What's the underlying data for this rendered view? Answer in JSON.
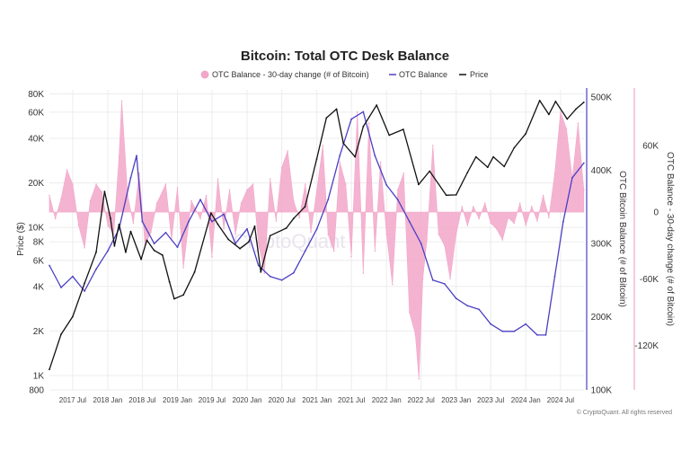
{
  "chart_data": {
    "type": "line",
    "title": "Bitcoin: Total OTC Desk Balance",
    "legend": {
      "position": "top-center",
      "entries": [
        {
          "name": "OTC Balance - 30-day change (# of Bitcoin)",
          "symbol": "circle",
          "color": "#f2a7c9"
        },
        {
          "name": "OTC Balance",
          "symbol": "line",
          "color": "#4b3fc4"
        },
        {
          "name": "Price",
          "symbol": "line",
          "color": "#111111"
        }
      ]
    },
    "axes": {
      "price": {
        "label": "Price ($)",
        "scale": "log",
        "range": [
          800,
          85000
        ],
        "ticks": [
          "80K",
          "60K",
          "40K",
          "20K",
          "10K",
          "8K",
          "6K",
          "4K",
          "2K",
          "1K",
          "800"
        ],
        "tick_values": [
          80000,
          60000,
          40000,
          20000,
          10000,
          8000,
          6000,
          4000,
          2000,
          1000,
          800
        ]
      },
      "otc_balance": {
        "label": "OTC Bitcoin Balance (# of Bitcoin)",
        "range": [
          100000,
          510000
        ],
        "ticks": [
          "500K",
          "400K",
          "300K",
          "200K",
          "100K"
        ],
        "tick_values": [
          500000,
          400000,
          300000,
          200000,
          100000
        ]
      },
      "otc_change": {
        "label": "OTC Balance - 30-day change (# of Bitcoin)",
        "range": [
          -160000,
          110000
        ],
        "ticks": [
          "60K",
          "0",
          "-60K",
          "-120K"
        ],
        "tick_values": [
          60000,
          0,
          -60000,
          -120000
        ]
      },
      "x": {
        "range": [
          "2017-03-01",
          "2024-11-01"
        ],
        "ticks": [
          "2017 Jul",
          "2018 Jan",
          "2018 Jul",
          "2019 Jan",
          "2019 Jul",
          "2020 Jan",
          "2020 Jul",
          "2021 Jan",
          "2021 Jul",
          "2022 Jan",
          "2022 Jul",
          "2023 Jan",
          "2023 Jul",
          "2024 Jan",
          "2024 Jul"
        ],
        "tick_dates": [
          "2017-07-01",
          "2018-01-01",
          "2018-07-01",
          "2019-01-01",
          "2019-07-01",
          "2020-01-01",
          "2020-07-01",
          "2021-01-01",
          "2021-07-01",
          "2022-01-01",
          "2022-07-01",
          "2023-01-01",
          "2023-07-01",
          "2024-01-01",
          "2024-07-01"
        ]
      }
    },
    "grid": true,
    "series": [
      {
        "name": "Price",
        "axis": "price",
        "color": "#111111",
        "points": [
          [
            "2017-03-01",
            1100
          ],
          [
            "2017-05-01",
            1900
          ],
          [
            "2017-07-01",
            2500
          ],
          [
            "2017-09-01",
            4200
          ],
          [
            "2017-11-01",
            6800
          ],
          [
            "2017-12-15",
            17500
          ],
          [
            "2018-01-15",
            11500
          ],
          [
            "2018-02-05",
            7500
          ],
          [
            "2018-03-01",
            10500
          ],
          [
            "2018-04-05",
            6800
          ],
          [
            "2018-05-01",
            9400
          ],
          [
            "2018-06-25",
            6100
          ],
          [
            "2018-07-25",
            8200
          ],
          [
            "2018-09-01",
            7000
          ],
          [
            "2018-10-15",
            6500
          ],
          [
            "2018-11-20",
            4300
          ],
          [
            "2018-12-15",
            3300
          ],
          [
            "2019-02-01",
            3500
          ],
          [
            "2019-04-01",
            5000
          ],
          [
            "2019-06-26",
            12500
          ],
          [
            "2019-08-01",
            10500
          ],
          [
            "2019-09-25",
            8300
          ],
          [
            "2019-11-25",
            7200
          ],
          [
            "2020-01-10",
            8000
          ],
          [
            "2020-02-10",
            10200
          ],
          [
            "2020-03-13",
            5000
          ],
          [
            "2020-05-01",
            8800
          ],
          [
            "2020-07-25",
            9900
          ],
          [
            "2020-09-01",
            11500
          ],
          [
            "2020-10-31",
            13800
          ],
          [
            "2020-12-31",
            29000
          ],
          [
            "2021-02-20",
            55000
          ],
          [
            "2021-04-14",
            63000
          ],
          [
            "2021-05-20",
            37000
          ],
          [
            "2021-07-20",
            30000
          ],
          [
            "2021-09-01",
            48000
          ],
          [
            "2021-11-10",
            67000
          ],
          [
            "2022-01-15",
            42000
          ],
          [
            "2022-03-30",
            46000
          ],
          [
            "2022-06-18",
            19500
          ],
          [
            "2022-08-15",
            24000
          ],
          [
            "2022-11-10",
            16500
          ],
          [
            "2023-01-01",
            16600
          ],
          [
            "2023-03-01",
            23500
          ],
          [
            "2023-04-15",
            30000
          ],
          [
            "2023-06-15",
            25500
          ],
          [
            "2023-07-15",
            30000
          ],
          [
            "2023-09-10",
            25800
          ],
          [
            "2023-11-01",
            34500
          ],
          [
            "2024-01-01",
            43000
          ],
          [
            "2024-03-14",
            72000
          ],
          [
            "2024-05-01",
            58000
          ],
          [
            "2024-06-05",
            71000
          ],
          [
            "2024-08-05",
            54000
          ],
          [
            "2024-09-20",
            63000
          ],
          [
            "2024-10-31",
            70000
          ]
        ]
      },
      {
        "name": "OTC Balance",
        "axis": "otc_balance",
        "color": "#4b3fc4",
        "points": [
          [
            "2017-03-01",
            270000
          ],
          [
            "2017-05-01",
            240000
          ],
          [
            "2017-07-01",
            255000
          ],
          [
            "2017-09-01",
            235000
          ],
          [
            "2017-11-01",
            265000
          ],
          [
            "2018-01-01",
            290000
          ],
          [
            "2018-03-01",
            320000
          ],
          [
            "2018-05-01",
            390000
          ],
          [
            "2018-06-01",
            420000
          ],
          [
            "2018-07-01",
            330000
          ],
          [
            "2018-09-01",
            300000
          ],
          [
            "2018-11-01",
            315000
          ],
          [
            "2019-01-01",
            295000
          ],
          [
            "2019-03-01",
            330000
          ],
          [
            "2019-05-01",
            360000
          ],
          [
            "2019-07-01",
            330000
          ],
          [
            "2019-09-01",
            340000
          ],
          [
            "2019-11-01",
            300000
          ],
          [
            "2020-01-01",
            320000
          ],
          [
            "2020-03-01",
            270000
          ],
          [
            "2020-05-01",
            255000
          ],
          [
            "2020-07-01",
            250000
          ],
          [
            "2020-09-01",
            260000
          ],
          [
            "2020-11-01",
            290000
          ],
          [
            "2021-01-01",
            320000
          ],
          [
            "2021-03-01",
            360000
          ],
          [
            "2021-05-01",
            420000
          ],
          [
            "2021-07-01",
            470000
          ],
          [
            "2021-09-01",
            480000
          ],
          [
            "2021-11-01",
            420000
          ],
          [
            "2022-01-01",
            380000
          ],
          [
            "2022-03-01",
            360000
          ],
          [
            "2022-05-01",
            330000
          ],
          [
            "2022-07-01",
            300000
          ],
          [
            "2022-09-01",
            250000
          ],
          [
            "2022-11-01",
            245000
          ],
          [
            "2023-01-01",
            225000
          ],
          [
            "2023-03-01",
            215000
          ],
          [
            "2023-05-01",
            210000
          ],
          [
            "2023-07-01",
            190000
          ],
          [
            "2023-09-01",
            180000
          ],
          [
            "2023-11-01",
            180000
          ],
          [
            "2024-01-01",
            190000
          ],
          [
            "2024-03-01",
            175000
          ],
          [
            "2024-04-15",
            175000
          ],
          [
            "2024-06-01",
            255000
          ],
          [
            "2024-07-15",
            330000
          ],
          [
            "2024-09-01",
            390000
          ],
          [
            "2024-10-31",
            410000
          ]
        ]
      },
      {
        "name": "OTC Balance - 30-day change (# of Bitcoin)",
        "axis": "otc_change",
        "type": "area",
        "color": "#f2a7c9",
        "points": [
          [
            "2017-03-01",
            15000
          ],
          [
            "2017-04-01",
            -6000
          ],
          [
            "2017-05-01",
            12000
          ],
          [
            "2017-06-01",
            38000
          ],
          [
            "2017-07-01",
            25000
          ],
          [
            "2017-08-01",
            -12000
          ],
          [
            "2017-09-01",
            -32000
          ],
          [
            "2017-10-01",
            10000
          ],
          [
            "2017-11-01",
            25000
          ],
          [
            "2017-12-01",
            18000
          ],
          [
            "2018-01-01",
            -12000
          ],
          [
            "2018-02-01",
            -20000
          ],
          [
            "2018-03-01",
            50000
          ],
          [
            "2018-03-15",
            100000
          ],
          [
            "2018-04-15",
            15000
          ],
          [
            "2018-05-15",
            -10000
          ],
          [
            "2018-06-15",
            35000
          ],
          [
            "2018-07-15",
            -30000
          ],
          [
            "2018-08-15",
            -18000
          ],
          [
            "2018-09-15",
            8000
          ],
          [
            "2018-11-01",
            25000
          ],
          [
            "2018-12-01",
            -25000
          ],
          [
            "2019-01-01",
            22000
          ],
          [
            "2019-02-01",
            -50000
          ],
          [
            "2019-03-15",
            10000
          ],
          [
            "2019-05-01",
            -6000
          ],
          [
            "2019-06-01",
            15000
          ],
          [
            "2019-07-01",
            -40000
          ],
          [
            "2019-08-01",
            30000
          ],
          [
            "2019-09-01",
            -15000
          ],
          [
            "2019-10-01",
            20000
          ],
          [
            "2019-11-01",
            -20000
          ],
          [
            "2019-12-01",
            8000
          ],
          [
            "2020-01-01",
            20000
          ],
          [
            "2020-02-01",
            25000
          ],
          [
            "2020-03-01",
            -28000
          ],
          [
            "2020-04-01",
            -55000
          ],
          [
            "2020-05-01",
            30000
          ],
          [
            "2020-06-01",
            -8000
          ],
          [
            "2020-07-01",
            40000
          ],
          [
            "2020-08-01",
            55000
          ],
          [
            "2020-09-01",
            10000
          ],
          [
            "2020-10-01",
            -5000
          ],
          [
            "2020-11-01",
            25000
          ],
          [
            "2020-12-01",
            -18000
          ],
          [
            "2021-01-01",
            20000
          ],
          [
            "2021-02-01",
            60000
          ],
          [
            "2021-03-01",
            -20000
          ],
          [
            "2021-04-01",
            -35000
          ],
          [
            "2021-05-01",
            45000
          ],
          [
            "2021-06-01",
            25000
          ],
          [
            "2021-07-01",
            -40000
          ],
          [
            "2021-08-01",
            90000
          ],
          [
            "2021-09-01",
            -55000
          ],
          [
            "2021-10-01",
            80000
          ],
          [
            "2021-11-01",
            -35000
          ],
          [
            "2021-12-01",
            45000
          ],
          [
            "2022-01-01",
            -20000
          ],
          [
            "2022-02-01",
            -65000
          ],
          [
            "2022-03-01",
            20000
          ],
          [
            "2022-04-01",
            35000
          ],
          [
            "2022-05-01",
            -90000
          ],
          [
            "2022-06-01",
            -110000
          ],
          [
            "2022-06-20",
            -150000
          ],
          [
            "2022-07-10",
            -60000
          ],
          [
            "2022-08-01",
            -25000
          ],
          [
            "2022-09-01",
            60000
          ],
          [
            "2022-10-01",
            -20000
          ],
          [
            "2022-11-01",
            -30000
          ],
          [
            "2022-12-01",
            -60000
          ],
          [
            "2023-01-01",
            -20000
          ],
          [
            "2023-02-01",
            5000
          ],
          [
            "2023-03-01",
            -12000
          ],
          [
            "2023-04-01",
            5000
          ],
          [
            "2023-05-01",
            -6000
          ],
          [
            "2023-06-01",
            8000
          ],
          [
            "2023-07-01",
            -10000
          ],
          [
            "2023-08-01",
            -15000
          ],
          [
            "2023-09-01",
            -25000
          ],
          [
            "2023-10-01",
            -5000
          ],
          [
            "2023-11-01",
            -10000
          ],
          [
            "2023-12-01",
            8000
          ],
          [
            "2024-01-01",
            -12000
          ],
          [
            "2024-02-01",
            5000
          ],
          [
            "2024-03-01",
            -8000
          ],
          [
            "2024-04-01",
            15000
          ],
          [
            "2024-05-01",
            -5000
          ],
          [
            "2024-06-01",
            35000
          ],
          [
            "2024-07-01",
            90000
          ],
          [
            "2024-08-01",
            75000
          ],
          [
            "2024-09-01",
            30000
          ],
          [
            "2024-10-01",
            80000
          ],
          [
            "2024-10-31",
            20000
          ]
        ]
      }
    ]
  },
  "watermark": "CryptoQuant",
  "copyright": "© CryptoQuant. All rights reserved"
}
